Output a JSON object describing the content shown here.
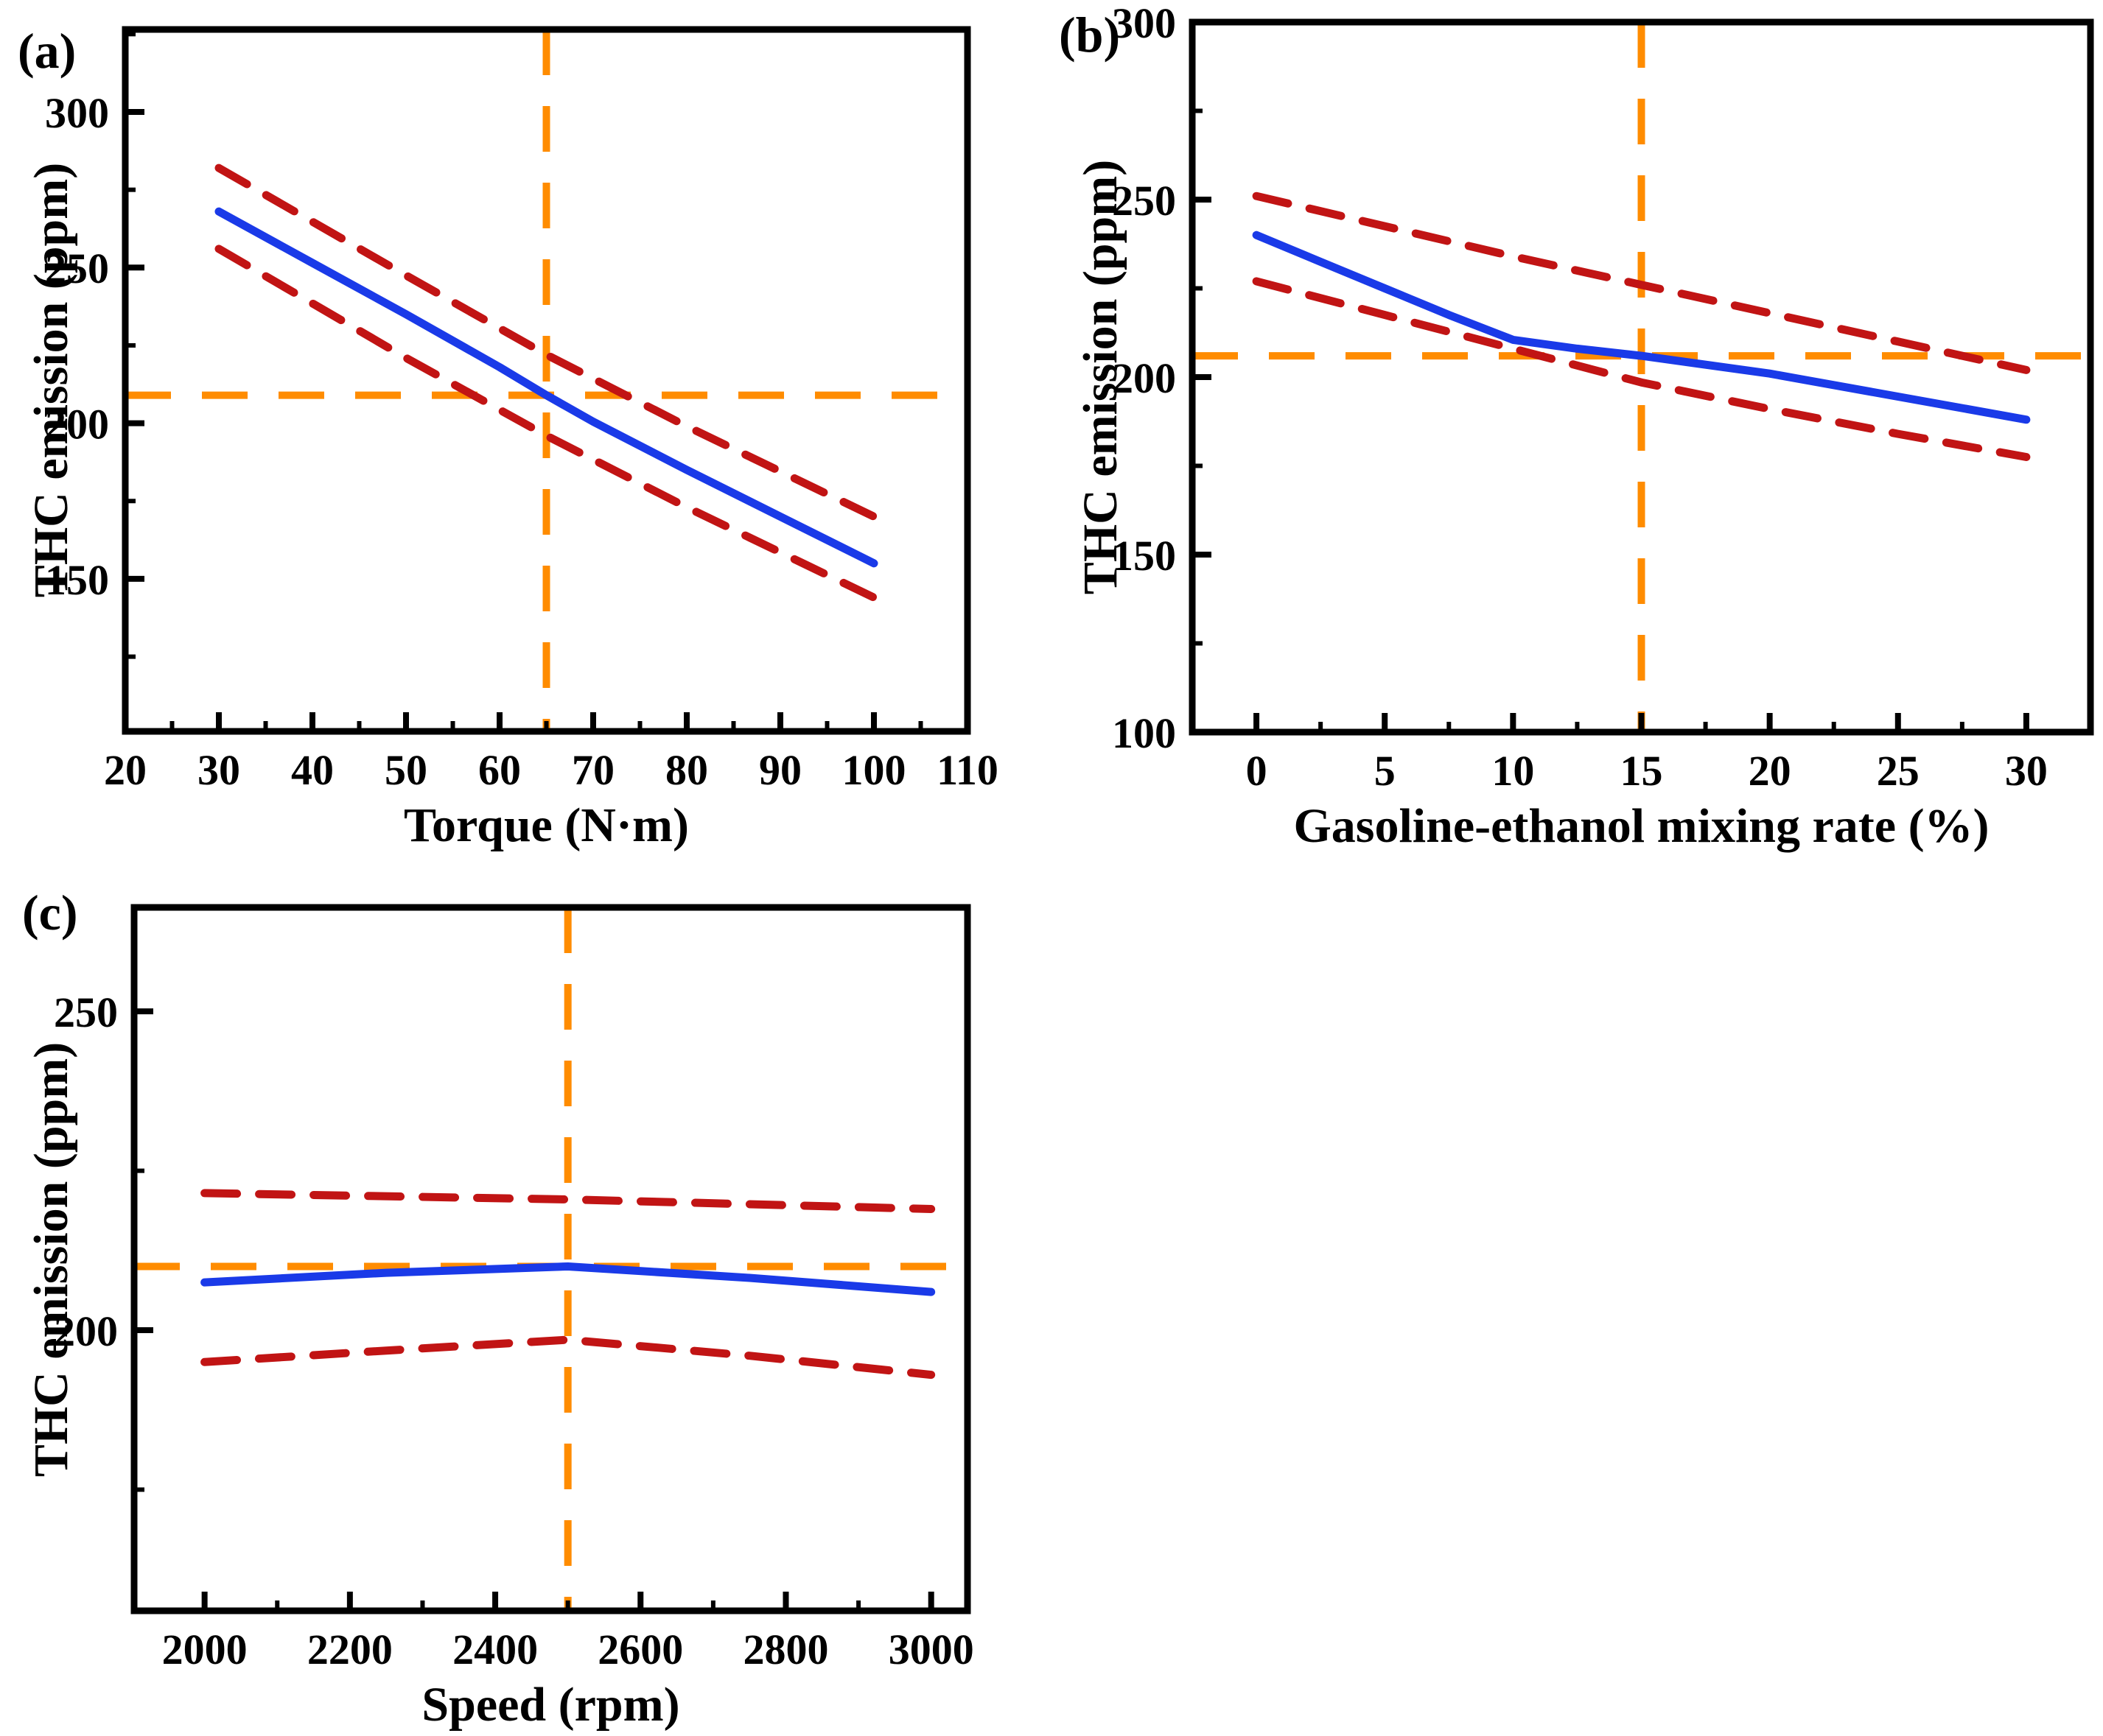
{
  "figure": {
    "background": "#ffffff",
    "axis_color": "#000000",
    "description": "Predicted THC emission response curves with 95% confidence bands and optimum crosshairs"
  },
  "chart_data": [
    {
      "type": "line",
      "panel_label": "(a)",
      "xlabel": "Torque (N·m)",
      "ylabel": "THC emission (ppm)",
      "xlim": [
        20,
        110
      ],
      "ylim": [
        101,
        326.5
      ],
      "xticks": [
        20,
        30,
        40,
        50,
        60,
        70,
        80,
        90,
        100,
        110
      ],
      "xtick_labels": [
        "20",
        "30",
        "40",
        "50",
        "60",
        "70",
        "80",
        "90",
        "100",
        "110"
      ],
      "xminor": [
        25,
        35,
        45,
        55,
        65,
        75,
        85,
        95,
        105
      ],
      "yticks": [
        150,
        200,
        250,
        300
      ],
      "ytick_labels": [
        "150",
        "200",
        "250",
        "300"
      ],
      "yminor": [
        125,
        175,
        225,
        275,
        325
      ],
      "grid": false,
      "legend": "none",
      "series": [
        {
          "name": "ci-upper",
          "style": "dashed",
          "color": "#c11414",
          "width": 11,
          "x": [
            30,
            50,
            65,
            80,
            100
          ],
          "y": [
            282,
            247.5,
            222,
            199,
            170
          ]
        },
        {
          "name": "ci-lower",
          "style": "dashed",
          "color": "#c11414",
          "width": 11,
          "x": [
            30,
            50,
            65,
            80,
            100
          ],
          "y": [
            256,
            221,
            196,
            173,
            144
          ]
        },
        {
          "name": "predicted",
          "style": "solid",
          "color": "#1a3ae8",
          "width": 11,
          "x": [
            30,
            40,
            50,
            60,
            65,
            70,
            80,
            90,
            100
          ],
          "y": [
            268,
            251.5,
            235,
            218,
            209,
            200.5,
            185,
            170,
            155
          ]
        }
      ],
      "crosshair": {
        "x": 65,
        "y": 209,
        "color": "#ff8c00"
      }
    },
    {
      "type": "line",
      "panel_label": "(b)",
      "xlabel": "Gasoline-ethanol mixing rate (%)",
      "ylabel": "THC emission (ppm)",
      "xlim": [
        -2.5,
        32.5
      ],
      "ylim": [
        100,
        300
      ],
      "xticks": [
        0,
        5,
        10,
        15,
        20,
        25,
        30
      ],
      "xtick_labels": [
        "0",
        "5",
        "10",
        "15",
        "20",
        "25",
        "30"
      ],
      "xminor": [
        2.5,
        7.5,
        12.5,
        17.5,
        22.5,
        27.5
      ],
      "yticks": [
        100,
        150,
        200,
        250,
        300
      ],
      "ytick_labels": [
        "100",
        "150",
        "200",
        "250",
        "300"
      ],
      "yminor": [
        125,
        175,
        225,
        275
      ],
      "grid": false,
      "legend": "none",
      "series": [
        {
          "name": "ci-upper",
          "style": "dashed",
          "color": "#c11414",
          "width": 11,
          "x": [
            0,
            5,
            10,
            15,
            20,
            25,
            30
          ],
          "y": [
            251,
            242.5,
            234,
            226,
            218,
            210,
            202
          ]
        },
        {
          "name": "ci-lower",
          "style": "dashed",
          "color": "#c11414",
          "width": 11,
          "x": [
            0,
            5,
            10,
            15,
            20,
            25,
            30
          ],
          "y": [
            227,
            217.5,
            208,
            198.5,
            191,
            184,
            177.5
          ]
        },
        {
          "name": "predicted",
          "style": "solid",
          "color": "#1a3ae8",
          "width": 11,
          "x": [
            0,
            2.5,
            5,
            7.5,
            10,
            12.5,
            15,
            20,
            25,
            30
          ],
          "y": [
            240,
            232.5,
            225,
            217.5,
            210.5,
            208,
            206,
            201,
            194.5,
            188
          ]
        }
      ],
      "crosshair": {
        "x": 15,
        "y": 206,
        "color": "#ff8c00"
      }
    },
    {
      "type": "line",
      "panel_label": "(c)",
      "xlabel": "Speed (rpm)",
      "ylabel": "THC emission (ppm)",
      "xlim": [
        1903,
        3050
      ],
      "ylim": [
        156,
        266.3
      ],
      "xticks": [
        2000,
        2200,
        2400,
        2600,
        2800,
        3000
      ],
      "xtick_labels": [
        "2000",
        "2200",
        "2400",
        "2600",
        "2800",
        "3000"
      ],
      "xminor": [
        2100,
        2300,
        2500,
        2700,
        2900
      ],
      "yticks": [
        200,
        250
      ],
      "ytick_labels": [
        "200",
        "250"
      ],
      "yminor": [
        175,
        225
      ],
      "grid": false,
      "legend": "none",
      "series": [
        {
          "name": "ci-upper",
          "style": "dashed",
          "color": "#c11414",
          "width": 11,
          "x": [
            2000,
            2500,
            3000
          ],
          "y": [
            221.5,
            220.5,
            219
          ]
        },
        {
          "name": "ci-lower",
          "style": "dashed",
          "color": "#c11414",
          "width": 11,
          "x": [
            2000,
            2250,
            2500,
            2750,
            3000
          ],
          "y": [
            195,
            196.8,
            198.5,
            196,
            193
          ]
        },
        {
          "name": "predicted",
          "style": "solid",
          "color": "#1a3ae8",
          "width": 11,
          "x": [
            2000,
            2250,
            2500,
            2750,
            3000
          ],
          "y": [
            207.5,
            209,
            210,
            208.2,
            206
          ]
        }
      ],
      "crosshair": {
        "x": 2500,
        "y": 210,
        "color": "#ff8c00"
      }
    }
  ]
}
